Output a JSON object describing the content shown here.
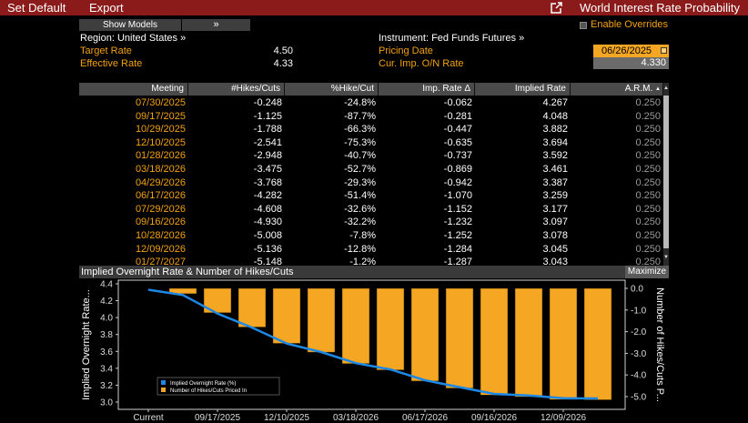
{
  "menu": {
    "set_default": "Set Default",
    "export": "Export"
  },
  "window": {
    "title": "World Interest Rate Probability",
    "launch_icon": "launch-icon"
  },
  "toolbar": {
    "show_models": "Show Models",
    "more": "»",
    "enable_overrides": "Enable Overrides",
    "overrides_checked": false
  },
  "params": {
    "region": "Region: United States »",
    "target_rate_label": "Target Rate",
    "target_rate_value": "4.50",
    "effective_rate_label": "Effective Rate",
    "effective_rate_value": "4.33",
    "instrument": "Instrument: Fed Funds Futures »",
    "pricing_date_label": "Pricing Date",
    "pricing_date_value": "06/26/2025",
    "cur_imp_label": "Cur. Imp. O/N Rate",
    "cur_imp_value": "4.330"
  },
  "table": {
    "columns": [
      "Meeting",
      "#Hikes/Cuts",
      "%Hike/Cut",
      "Imp. Rate Δ",
      "Implied Rate",
      "A.R.M."
    ],
    "sort_indicator": "▲",
    "rows": [
      [
        "07/30/2025",
        "-0.248",
        "-24.8%",
        "-0.062",
        "4.267",
        "0.250"
      ],
      [
        "09/17/2025",
        "-1.125",
        "-87.7%",
        "-0.281",
        "4.048",
        "0.250"
      ],
      [
        "10/29/2025",
        "-1.788",
        "-66.3%",
        "-0.447",
        "3.882",
        "0.250"
      ],
      [
        "12/10/2025",
        "-2.541",
        "-75.3%",
        "-0.635",
        "3.694",
        "0.250"
      ],
      [
        "01/28/2026",
        "-2.948",
        "-40.7%",
        "-0.737",
        "3.592",
        "0.250"
      ],
      [
        "03/18/2026",
        "-3.475",
        "-52.7%",
        "-0.869",
        "3.461",
        "0.250"
      ],
      [
        "04/29/2026",
        "-3.768",
        "-29.3%",
        "-0.942",
        "3.387",
        "0.250"
      ],
      [
        "06/17/2026",
        "-4.282",
        "-51.4%",
        "-1.070",
        "3.259",
        "0.250"
      ],
      [
        "07/29/2026",
        "-4.608",
        "-32.6%",
        "-1.152",
        "3.177",
        "0.250"
      ],
      [
        "09/16/2026",
        "-4.930",
        "-32.2%",
        "-1.232",
        "3.097",
        "0.250"
      ],
      [
        "10/28/2026",
        "-5.008",
        "-7.8%",
        "-1.252",
        "3.078",
        "0.250"
      ],
      [
        "12/09/2026",
        "-5.136",
        "-12.8%",
        "-1.284",
        "3.045",
        "0.250"
      ],
      [
        "01/27/2027",
        "-5.148",
        "-1.2%",
        "-1.287",
        "3.043",
        "0.250"
      ]
    ]
  },
  "chart_panel": {
    "title": "Implied Overnight Rate & Number of Hikes/Cuts",
    "maximize": "Maximize"
  },
  "chart_data": {
    "type": "bar+line",
    "categories": [
      "Current",
      "07/30/2025",
      "09/17/2025",
      "10/29/2025",
      "12/10/2025",
      "01/28/2026",
      "03/18/2026",
      "04/29/2026",
      "06/17/2026",
      "07/29/2026",
      "09/16/2026",
      "10/28/2026",
      "12/09/2026",
      "01/27/2027"
    ],
    "x_tick_labels": [
      "Current",
      "09/17/2025",
      "12/10/2025",
      "03/18/2026",
      "06/17/2026",
      "09/16/2026",
      "12/09/2026"
    ],
    "series": [
      {
        "name": "Implied Overnight Rate (%)",
        "type": "line",
        "axis": "left",
        "color": "#1e88e5",
        "values": [
          4.33,
          4.267,
          4.048,
          3.882,
          3.694,
          3.592,
          3.461,
          3.387,
          3.259,
          3.177,
          3.097,
          3.078,
          3.045,
          3.043
        ]
      },
      {
        "name": "Number of Hikes/Cuts Priced In",
        "type": "bar",
        "axis": "right",
        "color": "#f5a623",
        "values": [
          null,
          -0.248,
          -1.125,
          -1.788,
          -2.541,
          -2.948,
          -3.475,
          -3.768,
          -4.282,
          -4.608,
          -4.93,
          -5.008,
          -5.136,
          -5.148
        ]
      }
    ],
    "ylabel": "Implied Overnight Rate...",
    "y2label": "Number of Hikes/Cuts P...",
    "ylim": [
      3.0,
      4.4
    ],
    "yticks": [
      "3.0",
      "3.2",
      "3.4",
      "3.6",
      "3.8",
      "4.0",
      "4.2",
      "4.4"
    ],
    "y2lim": [
      -5.0,
      0.0
    ],
    "y2ticks": [
      "0.0",
      "-1.0",
      "-2.0",
      "-3.0",
      "-4.0",
      "-5.0"
    ],
    "grid": false,
    "legend": "bottom-left"
  }
}
